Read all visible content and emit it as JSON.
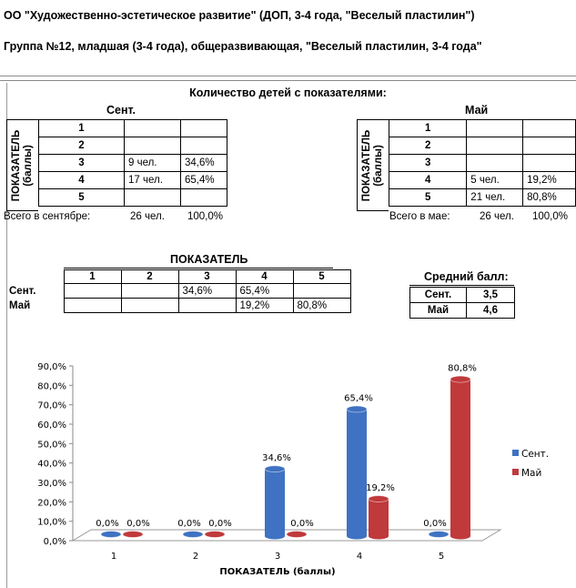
{
  "header": {
    "line1": "ОО \"Художественно-эстетическое развитие\" (ДОП, 3-4 года, \"Веселый пластилин\")",
    "line2": "Группа №12, младшая (3-4 года), общеразвивающая, \"Веселый пластилин, 3-4 года\""
  },
  "counts_section": {
    "title": "Количество детей с показателями:",
    "vertical_label": "ПОКАЗАТЕЛЬ\n(баллы)",
    "sept": {
      "title": "Сент.",
      "rows": [
        {
          "score": "1",
          "count": "",
          "pct": ""
        },
        {
          "score": "2",
          "count": "",
          "pct": ""
        },
        {
          "score": "3",
          "count": "9 чел.",
          "pct": "34,6%"
        },
        {
          "score": "4",
          "count": "17 чел.",
          "pct": "65,4%"
        },
        {
          "score": "5",
          "count": "",
          "pct": ""
        }
      ],
      "total_label": "Всего в сентябре:",
      "total_count": "26 чел.",
      "total_pct": "100,0%"
    },
    "may": {
      "title": "Май",
      "rows": [
        {
          "score": "1",
          "count": "",
          "pct": ""
        },
        {
          "score": "2",
          "count": "",
          "pct": ""
        },
        {
          "score": "3",
          "count": "",
          "pct": ""
        },
        {
          "score": "4",
          "count": "5 чел.",
          "pct": "19,2%"
        },
        {
          "score": "5",
          "count": "21 чел.",
          "pct": "80,8%"
        }
      ],
      "total_label": "Всего в мае:",
      "total_count": "26 чел.",
      "total_pct": "100,0%"
    }
  },
  "indicator_table": {
    "title": "ПОКАЗАТЕЛЬ",
    "columns": [
      "1",
      "2",
      "3",
      "4",
      "5"
    ],
    "rows": [
      {
        "label": "Сент.",
        "values": [
          "",
          "",
          "34,6%",
          "65,4%",
          ""
        ]
      },
      {
        "label": "Май",
        "values": [
          "",
          "",
          "",
          "19,2%",
          "80,8%"
        ]
      }
    ]
  },
  "average": {
    "title": "Средний балл:",
    "rows": [
      {
        "label": "Сент.",
        "value": "3,5"
      },
      {
        "label": "Май",
        "value": "4,6"
      }
    ]
  },
  "chart_data": {
    "type": "bar",
    "categories": [
      "1",
      "2",
      "3",
      "4",
      "5"
    ],
    "series": [
      {
        "name": "Сент.",
        "values": [
          0.0,
          0.0,
          34.6,
          65.4,
          0.0
        ],
        "labels": [
          "0,0%",
          "0,0%",
          "34,6%",
          "65,4%",
          "0,0%"
        ],
        "color": "#3f72c2"
      },
      {
        "name": "Май",
        "values": [
          0.0,
          0.0,
          0.0,
          19.2,
          80.8
        ],
        "labels": [
          "0,0%",
          "0,0%",
          "0,0%",
          "19,2%",
          "80,8%"
        ],
        "color": "#c0393b"
      }
    ],
    "xlabel": "ПОКАЗАТЕЛЬ (баллы)",
    "ylabel": "",
    "ylim": [
      0,
      90
    ],
    "yticks": [
      "0,0%",
      "10,0%",
      "20,0%",
      "30,0%",
      "40,0%",
      "50,0%",
      "60,0%",
      "70,0%",
      "80,0%",
      "90,0%"
    ],
    "grid": false,
    "legend": "right"
  }
}
